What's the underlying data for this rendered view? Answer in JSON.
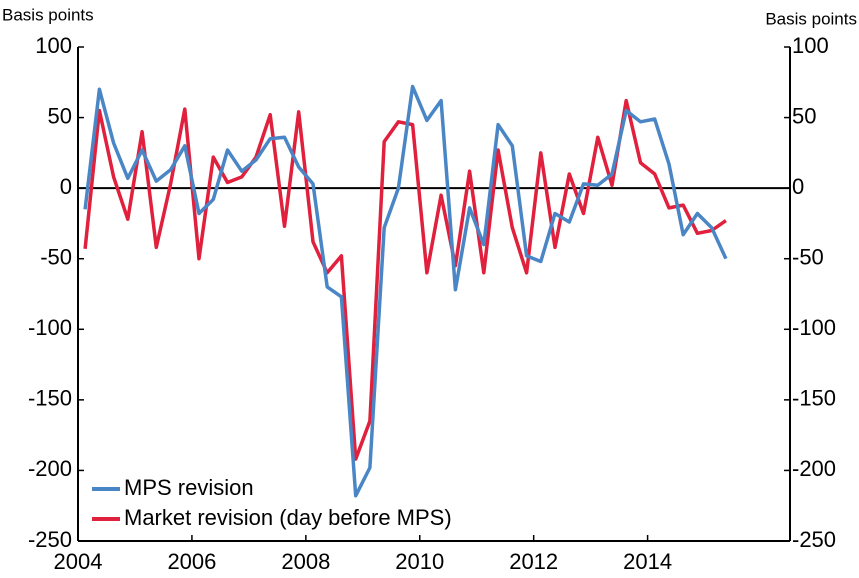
{
  "chart_data": {
    "type": "line",
    "y_label": "Basis points",
    "y2_label": "Basis points",
    "x": [
      2004.125,
      2004.375,
      2004.625,
      2004.875,
      2005.125,
      2005.375,
      2005.625,
      2005.875,
      2006.125,
      2006.375,
      2006.625,
      2006.875,
      2007.125,
      2007.375,
      2007.625,
      2007.875,
      2008.125,
      2008.375,
      2008.625,
      2008.875,
      2009.125,
      2009.375,
      2009.625,
      2009.875,
      2010.125,
      2010.375,
      2010.625,
      2010.875,
      2011.125,
      2011.375,
      2011.625,
      2011.875,
      2012.125,
      2012.375,
      2012.625,
      2012.875,
      2013.125,
      2013.375,
      2013.625,
      2013.875,
      2014.125,
      2014.375,
      2014.625,
      2014.875,
      2015.125,
      2015.375
    ],
    "series": [
      {
        "name": "MPS revision",
        "color": "#4a86c5",
        "values": [
          -15,
          70,
          32,
          7,
          27,
          5,
          13,
          30,
          -18,
          -8,
          27,
          12,
          20,
          35,
          36,
          15,
          3,
          -70,
          -77,
          -218,
          -198,
          -28,
          0,
          72,
          48,
          62,
          -72,
          -14,
          -40,
          45,
          30,
          -48,
          -52,
          -18,
          -24,
          3,
          2,
          10,
          55,
          47,
          49,
          17,
          -33,
          -18,
          -28,
          -50
        ]
      },
      {
        "name": "Market revision (day before MPS)",
        "color": "#e0203c",
        "values": [
          -43,
          55,
          8,
          -22,
          40,
          -42,
          3,
          56,
          -50,
          22,
          4,
          8,
          22,
          52,
          -27,
          54,
          -38,
          -60,
          -48,
          -192,
          -165,
          33,
          47,
          45,
          -60,
          -5,
          -55,
          12,
          -60,
          27,
          -28,
          -60,
          25,
          -42,
          10,
          -18,
          36,
          2,
          62,
          18,
          10,
          -14,
          -12,
          -32,
          -30,
          -23
        ]
      }
    ],
    "xlim": [
      2004,
      2016.5
    ],
    "xticks": [
      2004,
      2006,
      2008,
      2010,
      2012,
      2014
    ],
    "ylim": [
      -250,
      100
    ],
    "yticks": [
      -250,
      -200,
      -150,
      -100,
      -50,
      0,
      50,
      100
    ],
    "y2lim": [
      -250,
      100
    ],
    "y2ticks": [
      -250,
      -200,
      -150,
      -100,
      -50,
      0,
      50,
      100
    ],
    "legend": "lower left"
  }
}
